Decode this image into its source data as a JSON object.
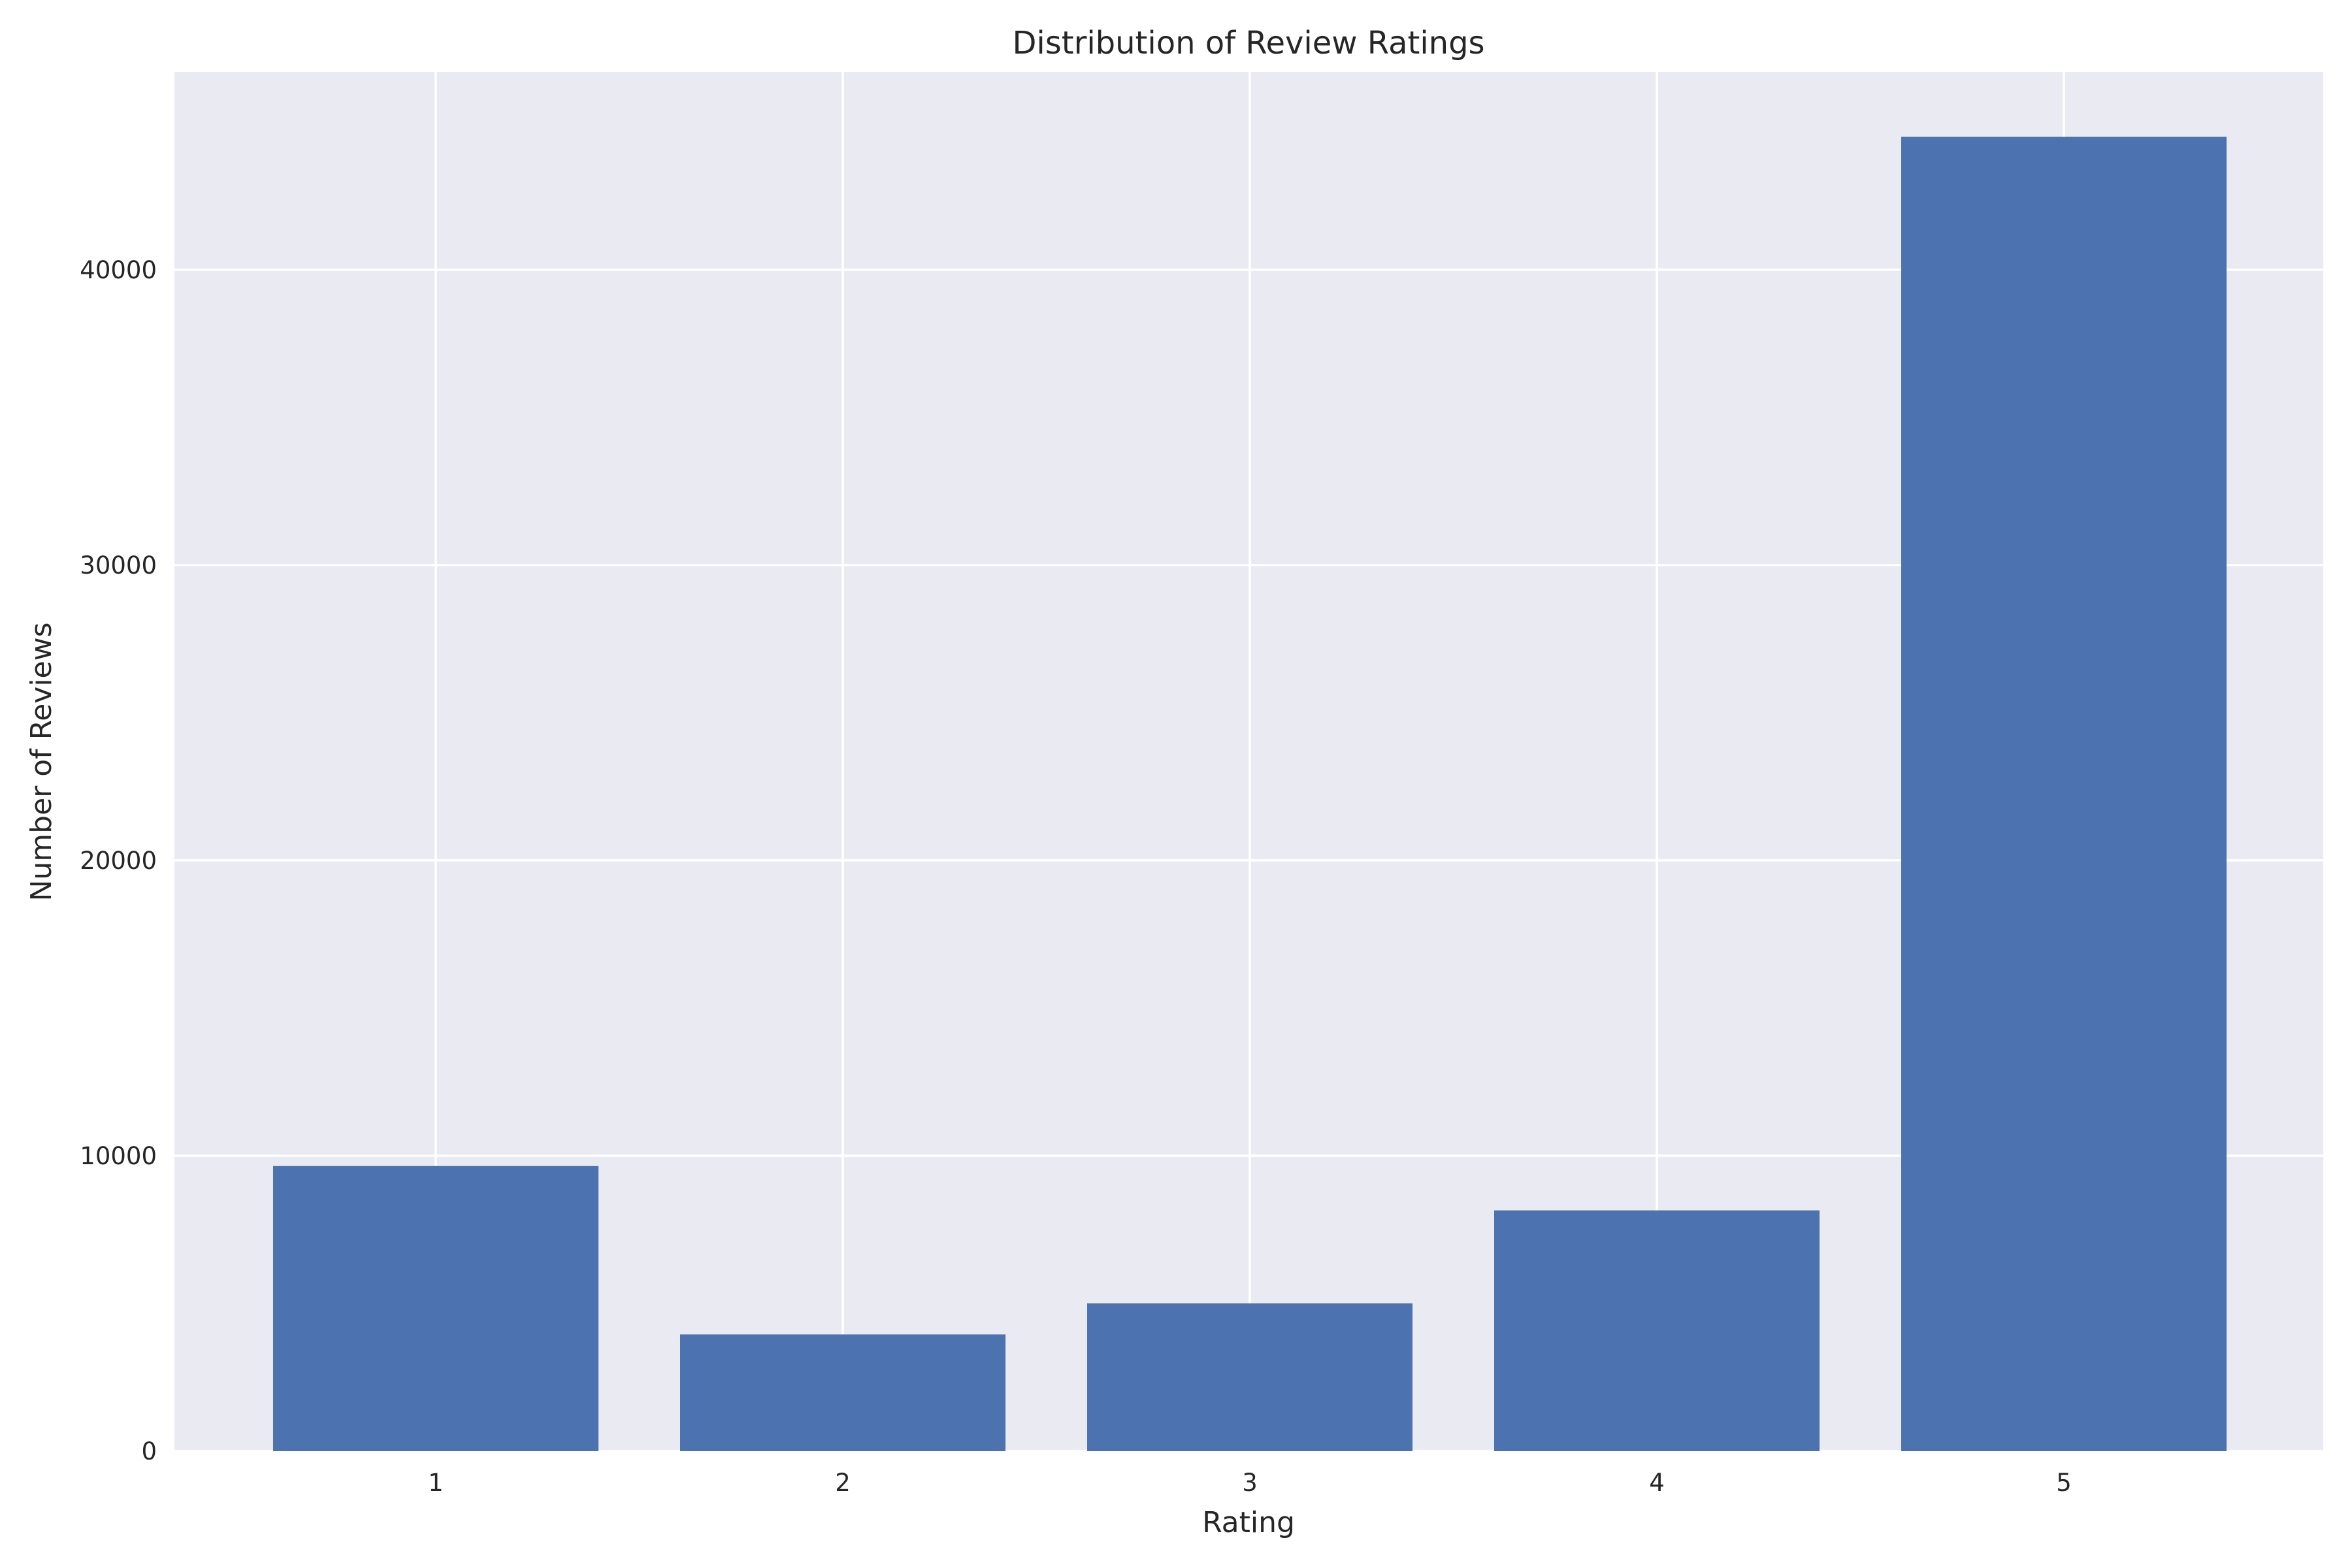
{
  "chart_data": {
    "type": "bar",
    "title": "Distribution of Review Ratings",
    "xlabel": "Rating",
    "ylabel": "Number of Reviews",
    "categories": [
      "1",
      "2",
      "3",
      "4",
      "5"
    ],
    "values": [
      9650,
      3950,
      5000,
      8150,
      44500
    ],
    "ylim": [
      0,
      46700
    ],
    "yticks": [
      0,
      10000,
      20000,
      30000,
      40000
    ],
    "grid": true,
    "colors": {
      "bar": "#4c72b0",
      "background": "#eaeaf2",
      "grid": "#ffffff",
      "text": "#262626"
    }
  }
}
